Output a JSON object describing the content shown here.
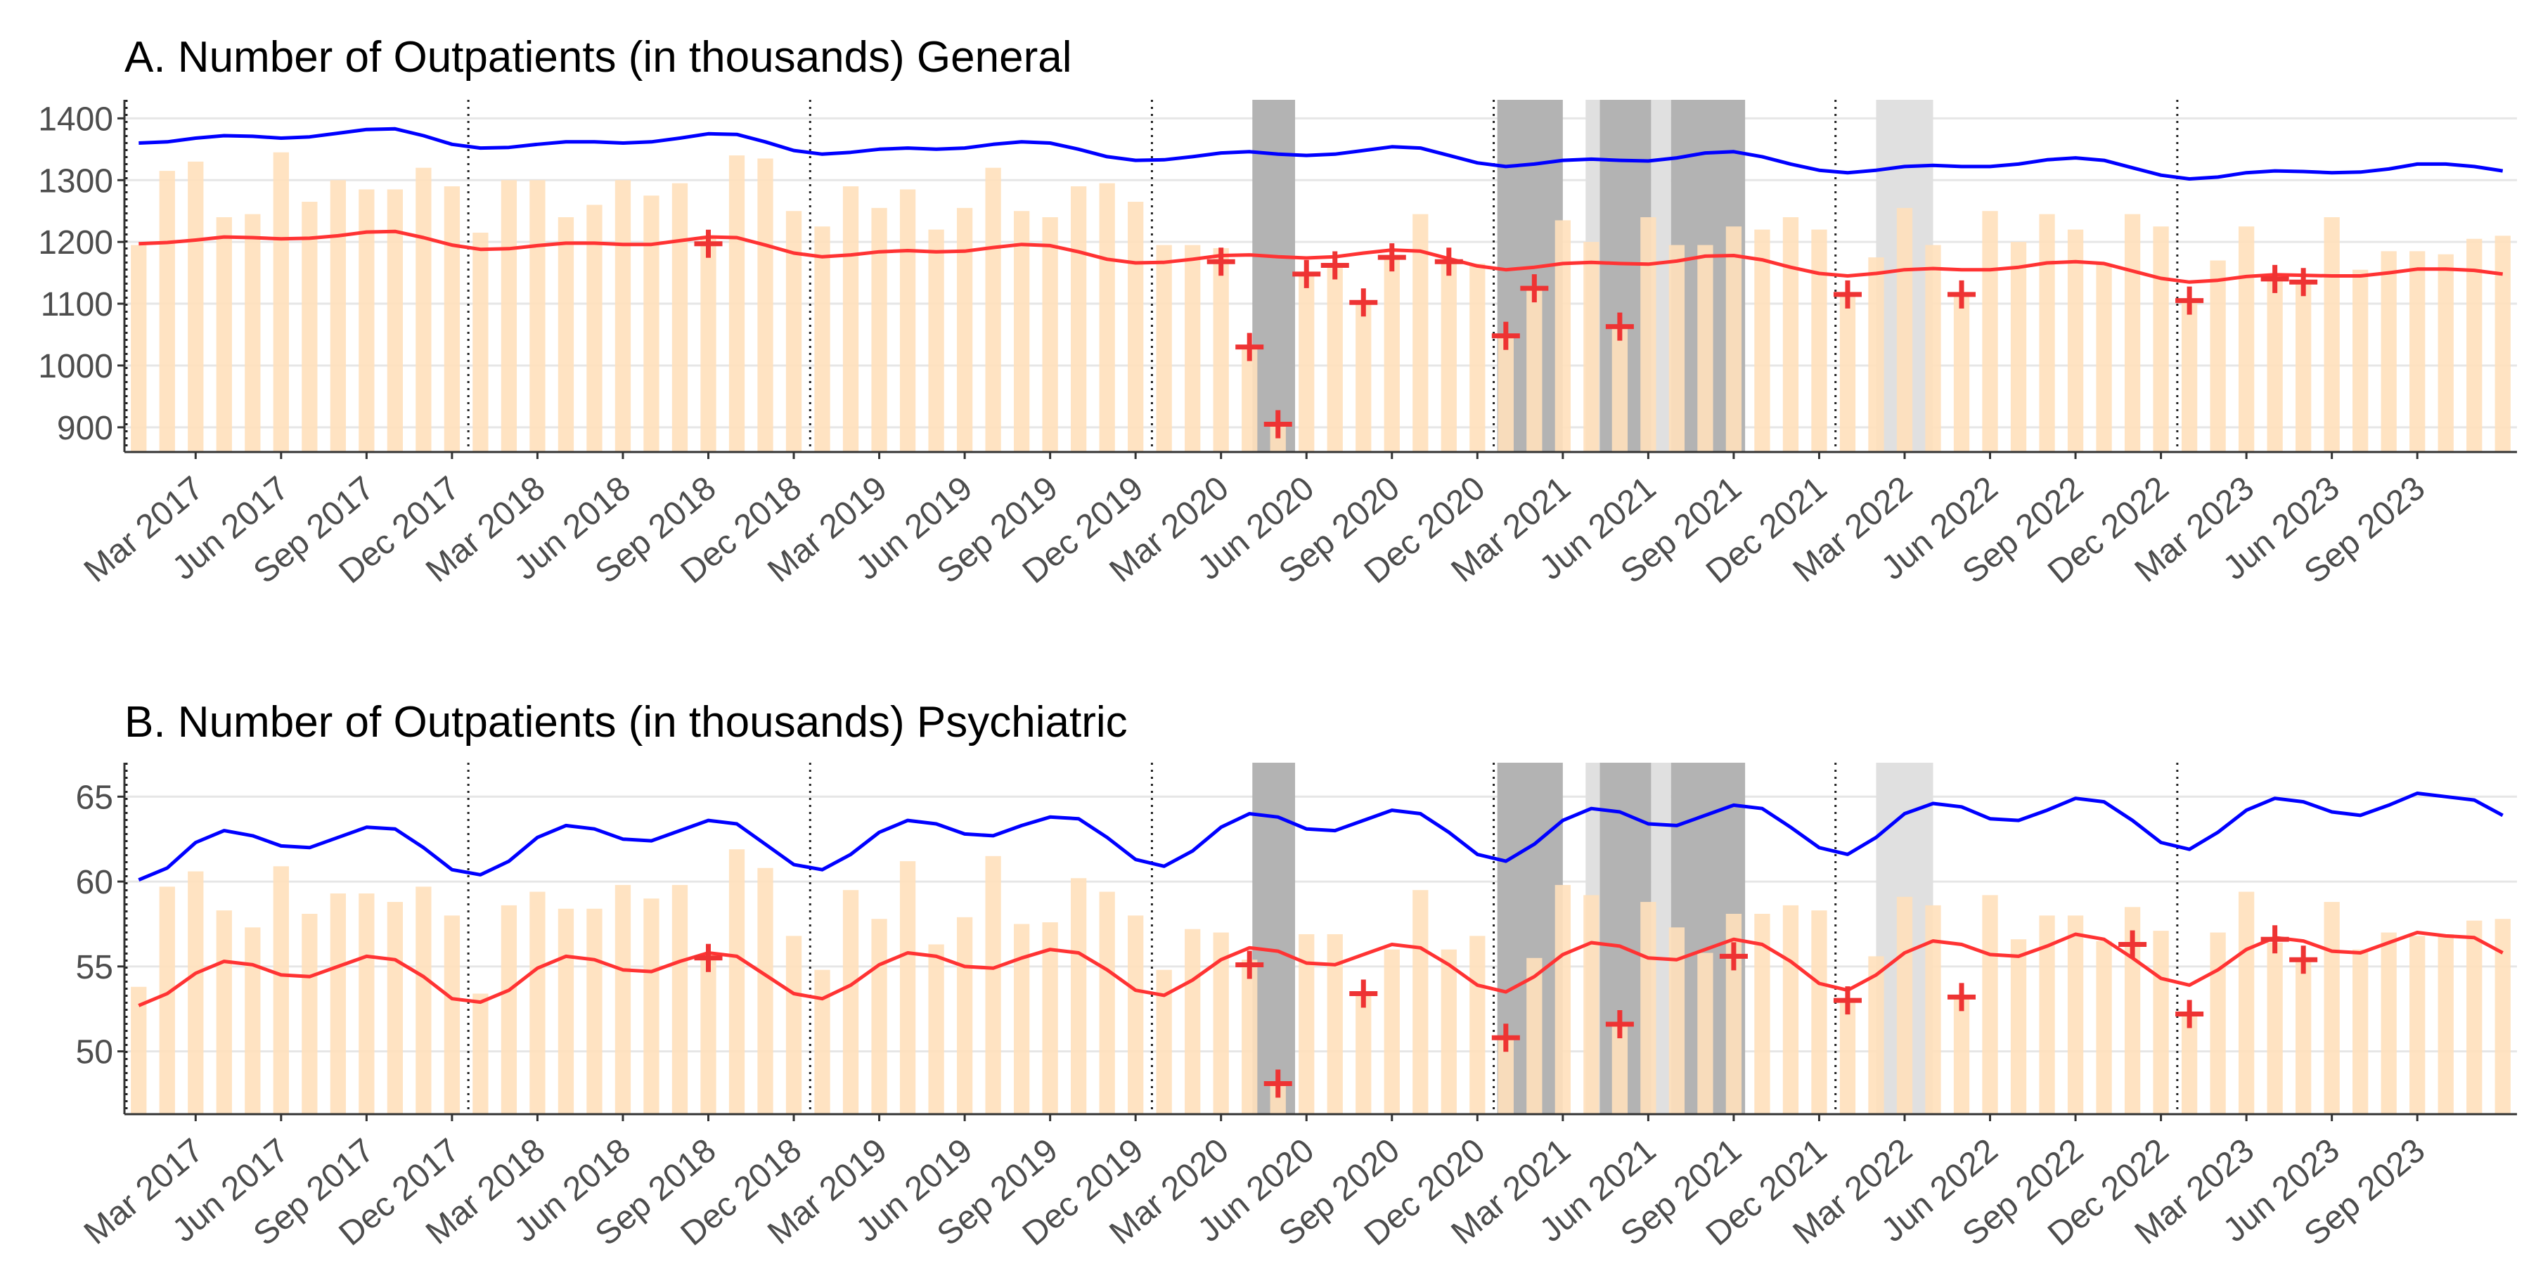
{
  "chart_data": [
    {
      "type": "bar",
      "title": "A. Number of Outpatients (in thousands) General",
      "xlabel": "",
      "ylabel": "",
      "x_tick_labels": [
        "Mar 2017",
        "Jun 2017",
        "Sep 2017",
        "Dec 2017",
        "Mar 2018",
        "Jun 2018",
        "Sep 2018",
        "Dec 2018",
        "Mar 2019",
        "Jun 2019",
        "Sep 2019",
        "Dec 2019",
        "Mar 2020",
        "Jun 2020",
        "Sep 2020",
        "Dec 2020",
        "Mar 2021",
        "Jun 2021",
        "Sep 2021",
        "Dec 2021",
        "Mar 2022",
        "Jun 2022",
        "Sep 2022",
        "Dec 2022",
        "Mar 2023",
        "Jun 2023",
        "Sep 2023"
      ],
      "y_tick_labels": [
        "900",
        "1000",
        "1100",
        "1200",
        "1300",
        "1400"
      ],
      "ylim": [
        860,
        1430
      ],
      "x_start": "2017-01",
      "months": 84,
      "bars": [
        1195,
        1315,
        1330,
        1240,
        1245,
        1345,
        1265,
        1300,
        1285,
        1285,
        1320,
        1290,
        1215,
        1300,
        1300,
        1240,
        1260,
        1300,
        1275,
        1295,
        1210,
        1340,
        1335,
        1250,
        1225,
        1290,
        1255,
        1285,
        1220,
        1255,
        1320,
        1250,
        1240,
        1290,
        1295,
        1265,
        1195,
        1195,
        1190,
        1030,
        905,
        1145,
        1165,
        1100,
        1175,
        1245,
        1170,
        1165,
        1045,
        1125,
        1235,
        1200,
        1060,
        1240,
        1195,
        1195,
        1225,
        1220,
        1240,
        1220,
        1115,
        1175,
        1255,
        1195,
        1115,
        1250,
        1200,
        1245,
        1220,
        1165,
        1245,
        1225,
        1105,
        1170,
        1225,
        1140,
        1135,
        1240,
        1155,
        1185,
        1185,
        1180,
        1205,
        1210
      ],
      "series": [
        {
          "name": "upper",
          "color": "#0000ff",
          "values": [
            1360,
            1362,
            1368,
            1372,
            1371,
            1368,
            1370,
            1376,
            1382,
            1383,
            1372,
            1358,
            1352,
            1353,
            1358,
            1362,
            1362,
            1360,
            1362,
            1368,
            1375,
            1374,
            1362,
            1348,
            1342,
            1345,
            1350,
            1352,
            1350,
            1352,
            1358,
            1362,
            1360,
            1350,
            1338,
            1332,
            1333,
            1338,
            1344,
            1346,
            1342,
            1340,
            1342,
            1348,
            1354,
            1352,
            1340,
            1328,
            1322,
            1326,
            1332,
            1334,
            1332,
            1331,
            1336,
            1344,
            1346,
            1338,
            1326,
            1316,
            1312,
            1316,
            1322,
            1324,
            1322,
            1322,
            1326,
            1333,
            1336,
            1332,
            1320,
            1308,
            1302,
            1305,
            1312,
            1315,
            1314,
            1312,
            1313,
            1318,
            1326,
            1326,
            1322,
            1315
          ]
        },
        {
          "name": "fitted",
          "color": "#ff3333",
          "values": [
            1197,
            1199,
            1203,
            1208,
            1207,
            1205,
            1206,
            1210,
            1216,
            1217,
            1207,
            1195,
            1188,
            1189,
            1194,
            1198,
            1198,
            1196,
            1196,
            1202,
            1208,
            1207,
            1195,
            1182,
            1176,
            1179,
            1184,
            1186,
            1184,
            1185,
            1191,
            1196,
            1194,
            1184,
            1172,
            1166,
            1167,
            1172,
            1178,
            1179,
            1176,
            1174,
            1176,
            1182,
            1187,
            1185,
            1173,
            1161,
            1155,
            1159,
            1165,
            1167,
            1165,
            1164,
            1169,
            1177,
            1178,
            1171,
            1159,
            1149,
            1145,
            1149,
            1155,
            1157,
            1155,
            1155,
            1159,
            1166,
            1168,
            1165,
            1153,
            1141,
            1135,
            1138,
            1144,
            1147,
            1146,
            1145,
            1145,
            1150,
            1156,
            1156,
            1154,
            1148
          ]
        }
      ],
      "points": {
        "name": "observed",
        "color": "#ee3333",
        "values": [
          {
            "x": 20,
            "y": 1197
          },
          {
            "x": 38,
            "y": 1168
          },
          {
            "x": 39,
            "y": 1030
          },
          {
            "x": 40,
            "y": 905
          },
          {
            "x": 41,
            "y": 1148
          },
          {
            "x": 42,
            "y": 1162
          },
          {
            "x": 43,
            "y": 1102
          },
          {
            "x": 44,
            "y": 1175
          },
          {
            "x": 46,
            "y": 1168
          },
          {
            "x": 48,
            "y": 1048
          },
          {
            "x": 49,
            "y": 1125
          },
          {
            "x": 52,
            "y": 1063
          },
          {
            "x": 60,
            "y": 1115
          },
          {
            "x": 64,
            "y": 1115
          },
          {
            "x": 72,
            "y": 1105
          },
          {
            "x": 75,
            "y": 1140
          },
          {
            "x": 76,
            "y": 1135
          }
        ]
      },
      "vlines_month_index": [
        0,
        12,
        24,
        36,
        48,
        60,
        72
      ],
      "shaded_periods": [
        {
          "start": 39.6,
          "end": 41.1,
          "shade": "dark"
        },
        {
          "start": 48.2,
          "end": 50.5,
          "shade": "dark"
        },
        {
          "start": 51.3,
          "end": 51.8,
          "shade": "light"
        },
        {
          "start": 51.8,
          "end": 53.6,
          "shade": "dark"
        },
        {
          "start": 53.6,
          "end": 54.3,
          "shade": "light"
        },
        {
          "start": 54.3,
          "end": 56.9,
          "shade": "dark"
        },
        {
          "start": 61.5,
          "end": 63.5,
          "shade": "light"
        }
      ]
    },
    {
      "type": "bar",
      "title": "B. Number of Outpatients (in thousands) Psychiatric",
      "xlabel": "",
      "ylabel": "",
      "x_tick_labels": [
        "Mar 2017",
        "Jun 2017",
        "Sep 2017",
        "Dec 2017",
        "Mar 2018",
        "Jun 2018",
        "Sep 2018",
        "Dec 2018",
        "Mar 2019",
        "Jun 2019",
        "Sep 2019",
        "Dec 2019",
        "Mar 2020",
        "Jun 2020",
        "Sep 2020",
        "Dec 2020",
        "Mar 2021",
        "Jun 2021",
        "Sep 2021",
        "Dec 2021",
        "Mar 2022",
        "Jun 2022",
        "Sep 2022",
        "Dec 2022",
        "Mar 2023",
        "Jun 2023",
        "Sep 2023"
      ],
      "y_tick_labels": [
        "50",
        "55",
        "60",
        "65"
      ],
      "ylim": [
        46.3,
        67
      ],
      "x_start": "2017-01",
      "months": 84,
      "bars": [
        53.8,
        59.7,
        60.6,
        58.3,
        57.3,
        60.9,
        58.1,
        59.3,
        59.3,
        58.8,
        59.7,
        58,
        53.4,
        58.6,
        59.4,
        58.4,
        58.4,
        59.8,
        59,
        59.8,
        55.8,
        61.9,
        60.8,
        56.8,
        54.8,
        59.5,
        57.8,
        61.2,
        56.3,
        57.9,
        61.5,
        57.5,
        57.6,
        60.2,
        59.4,
        58,
        54.8,
        57.2,
        57,
        55.4,
        48.1,
        56.9,
        56.9,
        53.4,
        56,
        59.5,
        56,
        56.8,
        50.8,
        55.5,
        59.8,
        59.2,
        51.6,
        58.8,
        57.3,
        55.8,
        58.1,
        58.1,
        58.6,
        58.3,
        53,
        55.6,
        59.1,
        58.6,
        53.2,
        59.2,
        56.6,
        58,
        58,
        56.5,
        58.5,
        57.1,
        52.2,
        57,
        59.4,
        56.4,
        55.4,
        58.8,
        56,
        57,
        56.8,
        56.9,
        57.7,
        57.8
      ],
      "series": [
        {
          "name": "upper",
          "color": "#0000ff",
          "values": [
            60.1,
            60.8,
            62.3,
            63,
            62.7,
            62.1,
            62,
            62.6,
            63.2,
            63.1,
            62,
            60.7,
            60.4,
            61.2,
            62.6,
            63.3,
            63.1,
            62.5,
            62.4,
            63,
            63.6,
            63.4,
            62.2,
            61,
            60.7,
            61.6,
            62.9,
            63.6,
            63.4,
            62.8,
            62.7,
            63.3,
            63.8,
            63.7,
            62.6,
            61.3,
            60.9,
            61.8,
            63.2,
            64,
            63.8,
            63.1,
            63,
            63.6,
            64.2,
            64,
            62.9,
            61.6,
            61.2,
            62.2,
            63.6,
            64.3,
            64.1,
            63.4,
            63.3,
            63.9,
            64.5,
            64.3,
            63.2,
            62,
            61.6,
            62.6,
            64,
            64.6,
            64.4,
            63.7,
            63.6,
            64.2,
            64.9,
            64.7,
            63.6,
            62.3,
            61.9,
            62.9,
            64.2,
            64.9,
            64.7,
            64.1,
            63.9,
            64.5,
            65.2,
            65,
            64.8,
            63.9
          ]
        },
        {
          "name": "fitted",
          "color": "#ff3333",
          "values": [
            52.7,
            53.4,
            54.6,
            55.3,
            55.1,
            54.5,
            54.4,
            55,
            55.6,
            55.4,
            54.4,
            53.1,
            52.9,
            53.6,
            54.9,
            55.6,
            55.4,
            54.8,
            54.7,
            55.3,
            55.8,
            55.6,
            54.5,
            53.4,
            53.1,
            53.9,
            55.1,
            55.8,
            55.6,
            55,
            54.9,
            55.5,
            56,
            55.8,
            54.8,
            53.6,
            53.3,
            54.2,
            55.4,
            56.1,
            55.9,
            55.2,
            55.1,
            55.7,
            56.3,
            56.1,
            55.1,
            53.9,
            53.5,
            54.4,
            55.7,
            56.4,
            56.2,
            55.5,
            55.4,
            56,
            56.6,
            56.3,
            55.3,
            54,
            53.6,
            54.5,
            55.8,
            56.5,
            56.3,
            55.7,
            55.6,
            56.2,
            56.9,
            56.6,
            55.5,
            54.3,
            53.9,
            54.8,
            56,
            56.7,
            56.5,
            55.9,
            55.8,
            56.4,
            57,
            56.8,
            56.7,
            55.8
          ]
        }
      ],
      "points": {
        "name": "observed",
        "color": "#ee3333",
        "values": [
          {
            "x": 20,
            "y": 55.5
          },
          {
            "x": 39,
            "y": 55.1
          },
          {
            "x": 40,
            "y": 48.1
          },
          {
            "x": 43,
            "y": 53.4
          },
          {
            "x": 48,
            "y": 50.8
          },
          {
            "x": 52,
            "y": 51.6
          },
          {
            "x": 56,
            "y": 55.6
          },
          {
            "x": 60,
            "y": 53
          },
          {
            "x": 64,
            "y": 53.2
          },
          {
            "x": 70,
            "y": 56.3
          },
          {
            "x": 72,
            "y": 52.2
          },
          {
            "x": 75,
            "y": 56.6
          },
          {
            "x": 76,
            "y": 55.4
          }
        ]
      },
      "vlines_month_index": [
        0,
        12,
        24,
        36,
        48,
        60,
        72
      ],
      "shaded_periods": [
        {
          "start": 39.6,
          "end": 41.1,
          "shade": "dark"
        },
        {
          "start": 48.2,
          "end": 50.5,
          "shade": "dark"
        },
        {
          "start": 51.3,
          "end": 51.8,
          "shade": "light"
        },
        {
          "start": 51.8,
          "end": 53.6,
          "shade": "dark"
        },
        {
          "start": 53.6,
          "end": 54.3,
          "shade": "light"
        },
        {
          "start": 54.3,
          "end": 56.9,
          "shade": "dark"
        },
        {
          "start": 61.5,
          "end": 63.5,
          "shade": "light"
        }
      ]
    }
  ],
  "colors": {
    "bar": "#ffe0bb",
    "upper_line": "#0000ff",
    "fitted_line": "#ff3333",
    "points": "#ee3333",
    "dark_shade": "#b3b3b3",
    "light_shade": "#e0e0e0",
    "grid": "#e6e6e6",
    "axis": "#333333"
  }
}
